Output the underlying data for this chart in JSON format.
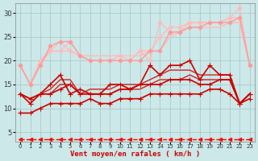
{
  "background_color": "#cce8e8",
  "grid_color": "#aacccc",
  "xlabel": "Vent moyen/en rafales ( km/h )",
  "xlim": [
    -0.5,
    23.5
  ],
  "ylim": [
    3,
    32
  ],
  "yticks": [
    5,
    10,
    15,
    20,
    25,
    30
  ],
  "xticks": [
    0,
    1,
    2,
    3,
    4,
    5,
    6,
    7,
    8,
    9,
    10,
    11,
    12,
    13,
    14,
    15,
    16,
    17,
    18,
    19,
    20,
    21,
    22,
    23
  ],
  "series": [
    {
      "x": [
        0,
        1,
        2,
        3,
        4,
        5,
        6,
        7,
        8,
        9,
        10,
        11,
        12,
        13,
        14,
        15,
        16,
        17,
        18,
        19,
        20,
        21,
        22,
        23
      ],
      "y": [
        19,
        15,
        19,
        22,
        24,
        22,
        21,
        20,
        20,
        20,
        21,
        20,
        22,
        20,
        28,
        26,
        26,
        28,
        28,
        28,
        28,
        29,
        31,
        19
      ],
      "color": "#ffbbbb",
      "lw": 1.0,
      "marker": "D",
      "ms": 2.5,
      "zorder": 2
    },
    {
      "x": [
        0,
        1,
        2,
        3,
        4,
        5,
        6,
        7,
        8,
        9,
        10,
        11,
        12,
        13,
        14,
        15,
        16,
        17,
        18,
        19,
        20,
        21,
        22,
        23
      ],
      "y": [
        19,
        15,
        20,
        22,
        22,
        24,
        21,
        20,
        20,
        20,
        20,
        20,
        22,
        22,
        25,
        27,
        27,
        28,
        28,
        28,
        28,
        29,
        29,
        19
      ],
      "color": "#ffbbbb",
      "lw": 1.0,
      "marker": "D",
      "ms": 2.5,
      "zorder": 2
    },
    {
      "x": [
        0,
        1,
        2,
        3,
        4,
        5,
        6,
        7,
        8,
        9,
        10,
        11,
        12,
        13,
        14,
        15,
        16,
        17,
        18,
        19,
        20,
        21,
        22,
        23
      ],
      "y": [
        19,
        15,
        20,
        22,
        22,
        22,
        21,
        21,
        21,
        21,
        21,
        21,
        21,
        22,
        22,
        25,
        26,
        27,
        27,
        27,
        27,
        28,
        28,
        19
      ],
      "color": "#ffbbbb",
      "lw": 1.0,
      "marker": null,
      "ms": 0,
      "zorder": 1
    },
    {
      "x": [
        0,
        1,
        2,
        3,
        4,
        5,
        6,
        7,
        8,
        9,
        10,
        11,
        12,
        13,
        14,
        15,
        16,
        17,
        18,
        19,
        20,
        21,
        22,
        23
      ],
      "y": [
        19,
        15,
        19,
        23,
        24,
        24,
        21,
        20,
        20,
        20,
        20,
        20,
        20,
        22,
        22,
        26,
        26,
        27,
        27,
        28,
        28,
        28,
        29,
        19
      ],
      "color": "#ff9999",
      "lw": 1.0,
      "marker": "D",
      "ms": 2.5,
      "zorder": 2
    },
    {
      "x": [
        0,
        1,
        2,
        3,
        4,
        5,
        6,
        7,
        8,
        9,
        10,
        11,
        12,
        13,
        14,
        15,
        16,
        17,
        18,
        19,
        20,
        21,
        22,
        23
      ],
      "y": [
        13,
        11,
        13,
        15,
        17,
        13,
        14,
        13,
        13,
        15,
        15,
        14,
        15,
        19,
        17,
        19,
        19,
        20,
        16,
        19,
        17,
        17,
        11,
        13
      ],
      "color": "#cc0000",
      "lw": 1.2,
      "marker": "+",
      "ms": 4,
      "zorder": 3
    },
    {
      "x": [
        0,
        1,
        2,
        3,
        4,
        5,
        6,
        7,
        8,
        9,
        10,
        11,
        12,
        13,
        14,
        15,
        16,
        17,
        18,
        19,
        20,
        21,
        22,
        23
      ],
      "y": [
        13,
        12,
        13,
        14,
        16,
        16,
        13,
        14,
        14,
        14,
        15,
        15,
        15,
        16,
        17,
        18,
        18,
        18,
        17,
        17,
        17,
        17,
        11,
        13
      ],
      "color": "#cc2222",
      "lw": 1.0,
      "marker": null,
      "ms": 0,
      "zorder": 2
    },
    {
      "x": [
        0,
        1,
        2,
        3,
        4,
        5,
        6,
        7,
        8,
        9,
        10,
        11,
        12,
        13,
        14,
        15,
        16,
        17,
        18,
        19,
        20,
        21,
        22,
        23
      ],
      "y": [
        13,
        12,
        13,
        13,
        15,
        15,
        13,
        13,
        13,
        13,
        14,
        14,
        14,
        15,
        16,
        16,
        16,
        17,
        16,
        16,
        16,
        16,
        11,
        13
      ],
      "color": "#cc2222",
      "lw": 1.0,
      "marker": null,
      "ms": 0,
      "zorder": 2
    },
    {
      "x": [
        0,
        1,
        2,
        3,
        4,
        5,
        6,
        7,
        8,
        9,
        10,
        11,
        12,
        13,
        14,
        15,
        16,
        17,
        18,
        19,
        20,
        21,
        22,
        23
      ],
      "y": [
        13,
        12,
        13,
        13,
        14,
        15,
        13,
        13,
        13,
        13,
        14,
        14,
        15,
        15,
        15,
        16,
        16,
        16,
        15,
        15,
        16,
        16,
        11,
        13
      ],
      "color": "#cc0000",
      "lw": 1.2,
      "marker": "+",
      "ms": 4,
      "zorder": 3
    },
    {
      "x": [
        0,
        1,
        2,
        3,
        4,
        5,
        6,
        7,
        8,
        9,
        10,
        11,
        12,
        13,
        14,
        15,
        16,
        17,
        18,
        19,
        20,
        21,
        22,
        23
      ],
      "y": [
        9,
        9,
        10,
        11,
        11,
        11,
        11,
        12,
        11,
        11,
        12,
        12,
        12,
        13,
        13,
        13,
        13,
        13,
        13,
        14,
        14,
        13,
        11,
        12
      ],
      "color": "#cc0000",
      "lw": 1.2,
      "marker": "+",
      "ms": 4,
      "zorder": 3
    },
    {
      "x": [
        0,
        1,
        2,
        3,
        4,
        5,
        6,
        7,
        8,
        9,
        10,
        11,
        12,
        13,
        14,
        15,
        16,
        17,
        18,
        19,
        20,
        21,
        22,
        23
      ],
      "y": [
        3.5,
        3.5,
        3.5,
        3.5,
        3.5,
        3.5,
        3.5,
        3.5,
        3.5,
        3.5,
        3.5,
        3.5,
        3.5,
        3.5,
        3.5,
        3.5,
        3.5,
        3.5,
        3.5,
        3.5,
        3.5,
        3.5,
        3.5,
        3.5
      ],
      "color": "#ff0000",
      "lw": 1.0,
      "marker": "<",
      "ms": 3,
      "linestyle": "--",
      "zorder": 3
    }
  ]
}
